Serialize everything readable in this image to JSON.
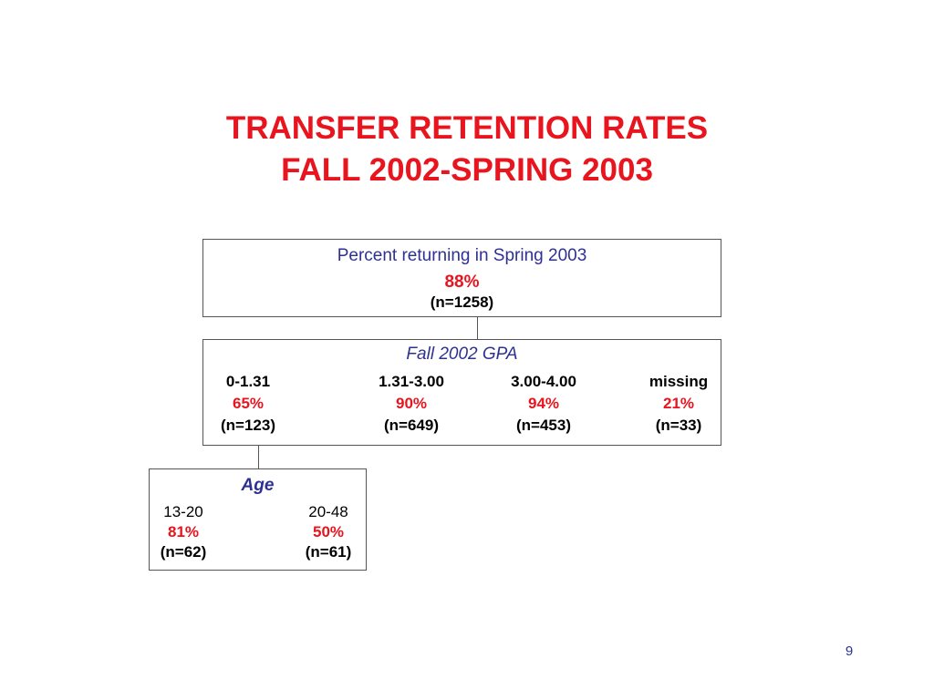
{
  "title": {
    "line1": "TRANSFER RETENTION RATES",
    "line2": "FALL 2002-SPRING 2003"
  },
  "top_box": {
    "heading": "Percent returning in Spring 2003",
    "percent": "88%",
    "count": "(n=1258)"
  },
  "gpa_box": {
    "heading": "Fall 2002 GPA",
    "groups": [
      {
        "range": "0-1.31",
        "percent": "65%",
        "count": "(n=123)"
      },
      {
        "range": "1.31-3.00",
        "percent": "90%",
        "count": "(n=649)"
      },
      {
        "range": "3.00-4.00",
        "percent": "94%",
        "count": "(n=453)"
      },
      {
        "range": "missing",
        "percent": "21%",
        "count": "(n=33)"
      }
    ]
  },
  "age_box": {
    "heading": "Age",
    "groups": [
      {
        "range": "13-20",
        "percent": "81%",
        "count": "(n=62)"
      },
      {
        "range": "20-48",
        "percent": "50%",
        "count": "(n=61)"
      }
    ]
  },
  "page_number": "9",
  "colors": {
    "title": "#e8141e",
    "heading": "#2e3192",
    "percent": "#e8141e",
    "border": "#555555"
  }
}
